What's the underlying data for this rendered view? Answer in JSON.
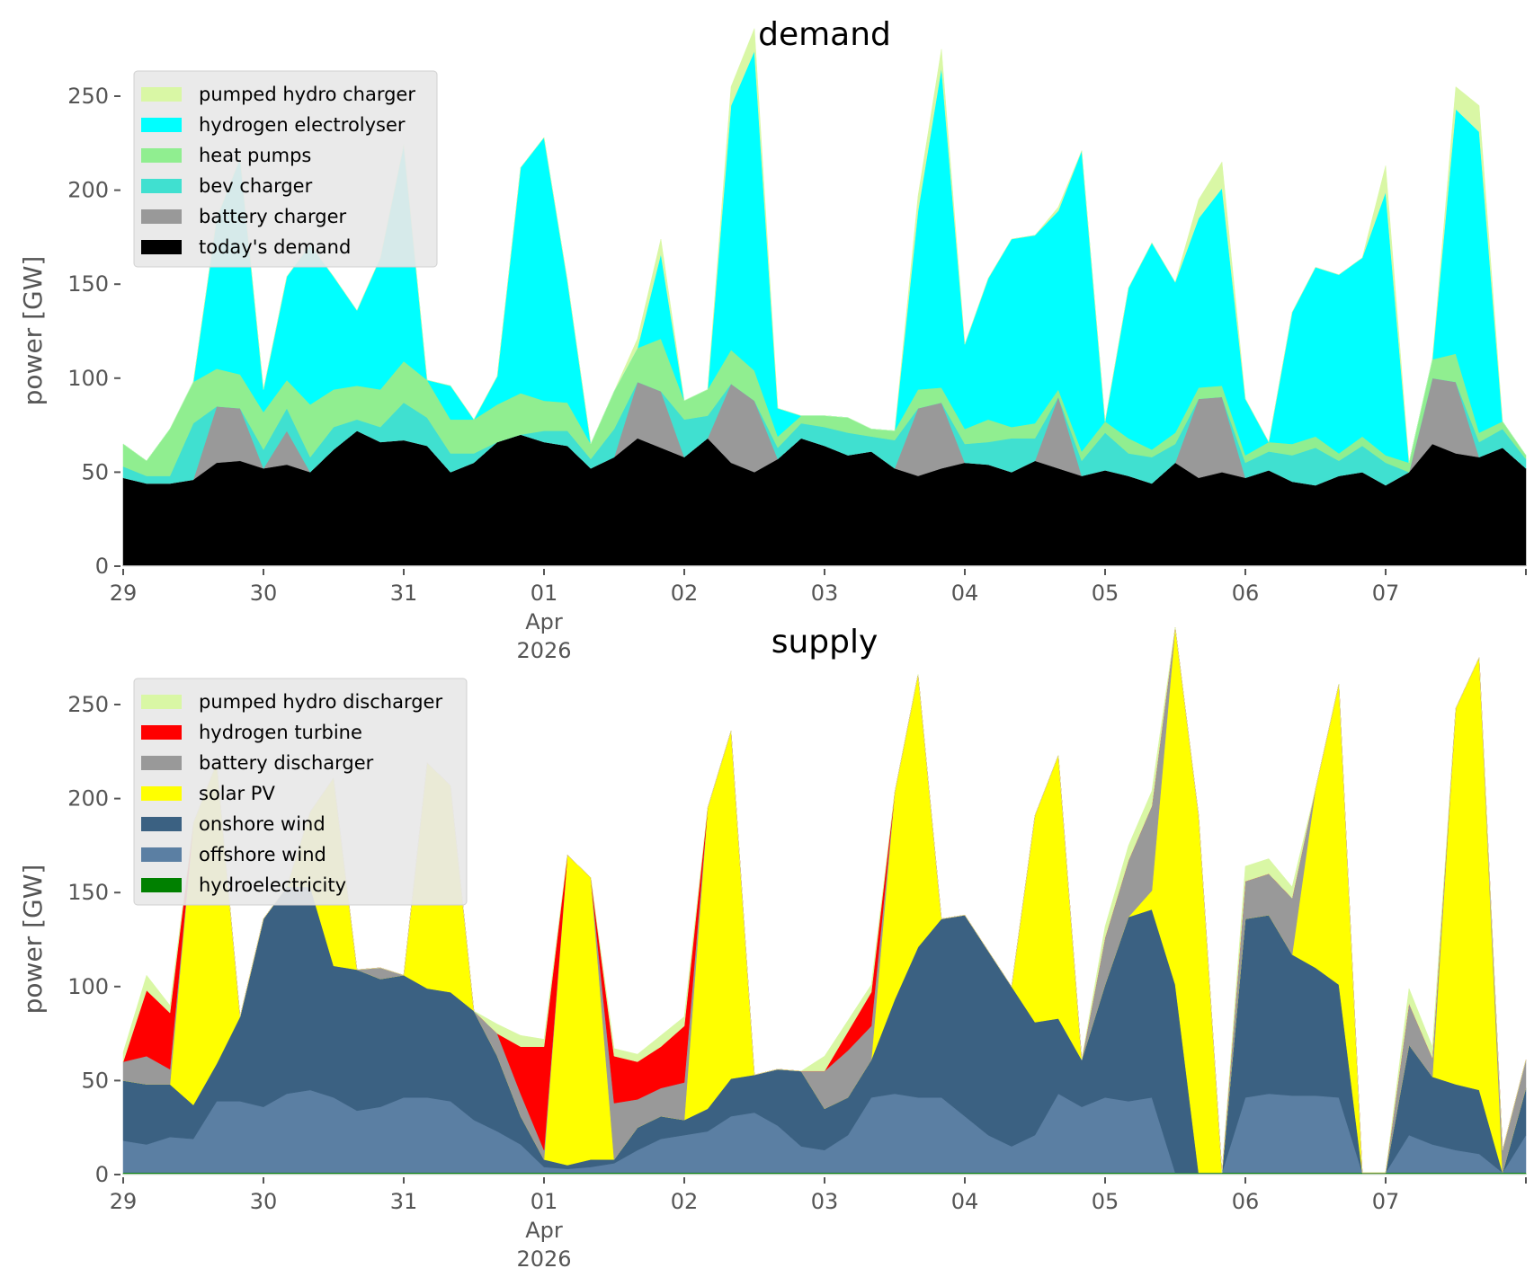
{
  "chart_data": [
    {
      "type": "area",
      "stacked": true,
      "title": "demand",
      "ylabel": "power [GW]",
      "xlabel": "",
      "ylim": [
        0,
        265
      ],
      "yticks": [
        0,
        50,
        100,
        150,
        200,
        250
      ],
      "xrange": [
        "2026-03-29 00:00",
        "2026-04-08 00:00"
      ],
      "xticks": [
        "29",
        "30",
        "31",
        "01",
        "02",
        "03",
        "04",
        "05",
        "06",
        "07"
      ],
      "xtick_sublabel": {
        "tick": "01",
        "lines": [
          "Apr",
          "2026"
        ]
      },
      "sample_interval_hours": 4,
      "grid": false,
      "legend_position": "top-left",
      "series": [
        {
          "name": "today's demand",
          "color": "#000000",
          "values": [
            47,
            44,
            44,
            46,
            55,
            56,
            52,
            54,
            50,
            62,
            72,
            66,
            67,
            64,
            50,
            55,
            66,
            70,
            66,
            64,
            52,
            58,
            68,
            63,
            58,
            68,
            55,
            50,
            57,
            68,
            64,
            59,
            61,
            52,
            48,
            52,
            55,
            54,
            50,
            56,
            52,
            48,
            51,
            48,
            44,
            55,
            47,
            50,
            47,
            51,
            45,
            43,
            48,
            50,
            43,
            50,
            65,
            60,
            58,
            63,
            52
          ]
        },
        {
          "name": "battery charger",
          "color": "#999999",
          "values": [
            0,
            0,
            0,
            0,
            30,
            28,
            0,
            18,
            0,
            0,
            0,
            0,
            0,
            0,
            0,
            0,
            0,
            0,
            0,
            0,
            0,
            0,
            30,
            30,
            0,
            0,
            42,
            38,
            0,
            0,
            0,
            0,
            0,
            0,
            36,
            35,
            0,
            0,
            0,
            0,
            38,
            0,
            0,
            0,
            0,
            0,
            42,
            40,
            0,
            0,
            0,
            0,
            0,
            0,
            0,
            0,
            35,
            38,
            0,
            0,
            0
          ]
        },
        {
          "name": "bev charger",
          "color": "#40e0d0",
          "values": [
            6,
            4,
            4,
            30,
            0,
            0,
            10,
            12,
            8,
            12,
            6,
            8,
            20,
            15,
            10,
            5,
            0,
            0,
            6,
            8,
            5,
            15,
            0,
            0,
            20,
            12,
            0,
            0,
            6,
            8,
            10,
            12,
            8,
            15,
            0,
            0,
            10,
            12,
            18,
            12,
            0,
            8,
            20,
            12,
            14,
            10,
            0,
            0,
            8,
            10,
            14,
            20,
            8,
            14,
            12,
            0,
            0,
            0,
            8,
            10,
            5
          ]
        },
        {
          "name": "heat pumps",
          "color": "#90ee90",
          "values": [
            12,
            8,
            25,
            22,
            20,
            18,
            20,
            15,
            28,
            20,
            18,
            20,
            22,
            20,
            18,
            18,
            20,
            22,
            16,
            15,
            8,
            20,
            18,
            28,
            10,
            14,
            18,
            16,
            6,
            4,
            6,
            8,
            4,
            5,
            10,
            8,
            8,
            12,
            6,
            8,
            4,
            5,
            6,
            8,
            4,
            6,
            6,
            6,
            4,
            5,
            6,
            6,
            4,
            5,
            4,
            5,
            10,
            15,
            5,
            4,
            2
          ]
        },
        {
          "name": "hydrogen electrolyser",
          "color": "#00ffff",
          "values": [
            0,
            0,
            0,
            0,
            80,
            115,
            12,
            55,
            85,
            60,
            40,
            70,
            115,
            0,
            18,
            0,
            15,
            120,
            140,
            65,
            0,
            0,
            0,
            45,
            0,
            0,
            130,
            170,
            15,
            0,
            0,
            0,
            0,
            0,
            95,
            170,
            45,
            75,
            100,
            100,
            95,
            160,
            0,
            80,
            110,
            80,
            90,
            105,
            30,
            0,
            70,
            90,
            95,
            95,
            140,
            0,
            0,
            130,
            160,
            0,
            0
          ]
        },
        {
          "name": "pumped hydro charger",
          "color": "#d9f7a5",
          "values": [
            0,
            0,
            0,
            0,
            0,
            0,
            0,
            0,
            0,
            0,
            0,
            0,
            0,
            0,
            0,
            0,
            0,
            0,
            0,
            0,
            0,
            0,
            5,
            8,
            0,
            0,
            10,
            12,
            0,
            0,
            0,
            0,
            0,
            0,
            8,
            10,
            0,
            0,
            0,
            0,
            2,
            0,
            0,
            0,
            0,
            0,
            10,
            14,
            0,
            0,
            0,
            0,
            0,
            0,
            14,
            0,
            0,
            12,
            14,
            0,
            0
          ]
        }
      ]
    },
    {
      "type": "area",
      "stacked": true,
      "title": "supply",
      "ylabel": "power [GW]",
      "xlabel": "",
      "ylim": [
        0,
        265
      ],
      "yticks": [
        0,
        50,
        100,
        150,
        200,
        250
      ],
      "xrange": [
        "2026-03-29 00:00",
        "2026-04-08 00:00"
      ],
      "xticks": [
        "29",
        "30",
        "31",
        "01",
        "02",
        "03",
        "04",
        "05",
        "06",
        "07"
      ],
      "xtick_sublabel": {
        "tick": "01",
        "lines": [
          "Apr",
          "2026"
        ]
      },
      "sample_interval_hours": 4,
      "grid": false,
      "legend_position": "top-left",
      "series": [
        {
          "name": "hydroelectricity",
          "color": "#008000",
          "values": [
            1,
            1,
            1,
            1,
            1,
            1,
            1,
            1,
            1,
            1,
            1,
            1,
            1,
            1,
            1,
            1,
            1,
            1,
            1,
            1,
            1,
            1,
            1,
            1,
            1,
            1,
            1,
            1,
            1,
            1,
            1,
            1,
            1,
            1,
            1,
            1,
            1,
            1,
            1,
            1,
            1,
            1,
            1,
            1,
            1,
            1,
            1,
            1,
            1,
            1,
            1,
            1,
            1,
            1,
            1,
            1,
            1,
            1,
            1,
            1,
            1
          ]
        },
        {
          "name": "offshore wind",
          "color": "#5b7fa3",
          "values": [
            17,
            15,
            19,
            18,
            38,
            38,
            35,
            42,
            44,
            40,
            33,
            35,
            40,
            40,
            38,
            28,
            22,
            15,
            3,
            2,
            3,
            5,
            12,
            18,
            20,
            22,
            30,
            32,
            25,
            14,
            12,
            20,
            40,
            42,
            40,
            40,
            30,
            20,
            14,
            20,
            42,
            35,
            40,
            38,
            40,
            0,
            0,
            0,
            40,
            42,
            41,
            41,
            40,
            0,
            0,
            20,
            15,
            12,
            10,
            0,
            20
          ]
        },
        {
          "name": "onshore wind",
          "color": "#3b6182",
          "values": [
            32,
            32,
            28,
            18,
            20,
            45,
            100,
            110,
            108,
            70,
            75,
            68,
            65,
            58,
            58,
            58,
            40,
            15,
            4,
            2,
            4,
            2,
            12,
            12,
            8,
            12,
            20,
            20,
            30,
            40,
            22,
            20,
            20,
            50,
            80,
            95,
            107,
            98,
            85,
            60,
            40,
            25,
            60,
            98,
            100,
            100,
            0,
            0,
            95,
            95,
            75,
            68,
            60,
            0,
            0,
            48,
            36,
            35,
            34,
            0,
            25
          ]
        },
        {
          "name": "solar PV",
          "color": "#ffff00",
          "values": [
            0,
            0,
            0,
            150,
            160,
            0,
            0,
            0,
            40,
            100,
            0,
            0,
            0,
            120,
            110,
            0,
            0,
            0,
            0,
            165,
            150,
            0,
            0,
            0,
            0,
            160,
            185,
            0,
            0,
            0,
            0,
            0,
            0,
            110,
            145,
            0,
            0,
            0,
            0,
            110,
            140,
            0,
            0,
            0,
            10,
            190,
            190,
            0,
            0,
            0,
            0,
            95,
            160,
            0,
            0,
            0,
            0,
            200,
            230,
            0,
            0
          ]
        },
        {
          "name": "battery discharger",
          "color": "#999999",
          "values": [
            10,
            15,
            8,
            0,
            0,
            0,
            0,
            0,
            0,
            0,
            0,
            6,
            0,
            0,
            0,
            0,
            12,
            12,
            5,
            0,
            0,
            30,
            15,
            15,
            20,
            0,
            0,
            0,
            0,
            0,
            20,
            25,
            18,
            0,
            0,
            0,
            0,
            0,
            0,
            0,
            0,
            0,
            25,
            30,
            45,
            0,
            0,
            0,
            20,
            22,
            30,
            0,
            0,
            0,
            0,
            22,
            10,
            0,
            0,
            12,
            15
          ]
        },
        {
          "name": "hydrogen turbine",
          "color": "#ff0000",
          "values": [
            0,
            35,
            30,
            0,
            0,
            0,
            0,
            0,
            0,
            0,
            0,
            0,
            0,
            0,
            0,
            0,
            0,
            25,
            55,
            0,
            0,
            25,
            20,
            22,
            30,
            0,
            0,
            0,
            0,
            0,
            0,
            10,
            18,
            0,
            0,
            0,
            0,
            0,
            0,
            0,
            0,
            0,
            0,
            0,
            0,
            0,
            0,
            0,
            0,
            0,
            0,
            0,
            0,
            0,
            0,
            0,
            0,
            0,
            0,
            0,
            0
          ]
        },
        {
          "name": "pumped hydro discharger",
          "color": "#d9f7a5",
          "values": [
            5,
            8,
            4,
            0,
            0,
            0,
            0,
            0,
            0,
            0,
            0,
            0,
            0,
            0,
            0,
            0,
            5,
            6,
            4,
            0,
            0,
            4,
            4,
            6,
            5,
            0,
            0,
            0,
            0,
            0,
            8,
            6,
            4,
            0,
            0,
            0,
            0,
            0,
            0,
            0,
            0,
            0,
            6,
            8,
            8,
            0,
            0,
            0,
            8,
            8,
            6,
            0,
            0,
            0,
            0,
            8,
            6,
            0,
            0,
            0,
            0
          ]
        }
      ]
    }
  ]
}
